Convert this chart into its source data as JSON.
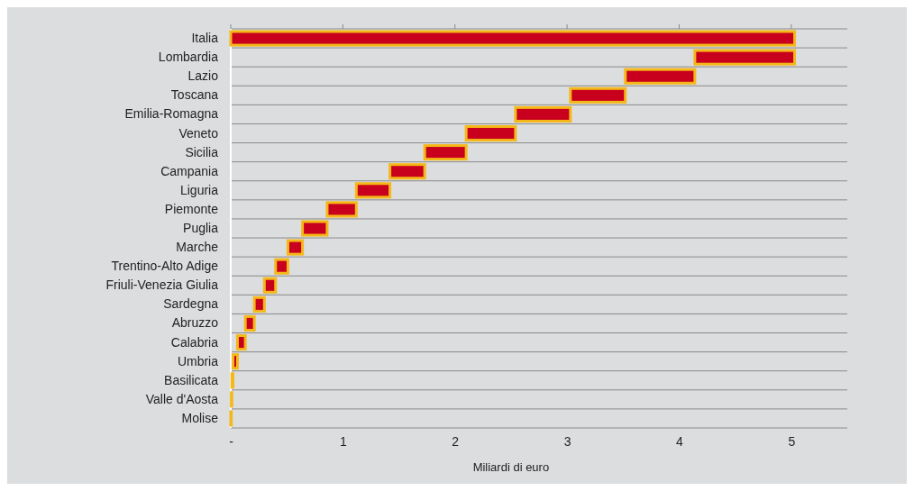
{
  "chart_data": {
    "type": "bar",
    "orientation": "horizontal",
    "xlabel": "Miliardi di euro",
    "categories": [
      "Italia",
      "Lombardia",
      "Lazio",
      "Toscana",
      "Emilia-Romagna",
      "Veneto",
      "Sicilia",
      "Campania",
      "Liguria",
      "Piemonte",
      "Puglia",
      "Marche",
      "Trentino-Alto Adige",
      "Friuli-Venezia Giulia",
      "Sardegna",
      "Abruzzo",
      "Calabria",
      "Umbria",
      "Basilicata",
      "Valle d'Aosta",
      "Molise"
    ],
    "values": [
      5.03,
      0.89,
      0.62,
      0.49,
      0.49,
      0.44,
      0.37,
      0.31,
      0.3,
      0.26,
      0.22,
      0.13,
      0.11,
      0.1,
      0.09,
      0.08,
      0.07,
      0.04,
      0.01,
      0.005,
      0.005
    ],
    "base": [
      0,
      4.14,
      3.52,
      3.03,
      2.54,
      2.1,
      1.73,
      1.42,
      1.12,
      0.86,
      0.64,
      0.51,
      0.4,
      0.3,
      0.21,
      0.13,
      0.06,
      0.02,
      0.01,
      0.005,
      0
    ],
    "color": "#c8001e",
    "xlim": [
      0,
      5.5
    ],
    "xticks": [
      {
        "value": 0,
        "label": "-"
      },
      1,
      2,
      3,
      4,
      5
    ],
    "grid": "y"
  }
}
